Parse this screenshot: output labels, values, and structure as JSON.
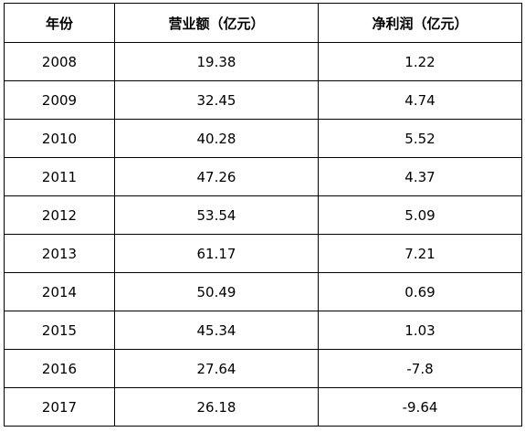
{
  "chart_data": {
    "type": "table",
    "columns": [
      "年份",
      "营业额（亿元）",
      "净利润（亿元）"
    ],
    "rows": [
      [
        "2008",
        "19.38",
        "1.22"
      ],
      [
        "2009",
        "32.45",
        "4.74"
      ],
      [
        "2010",
        "40.28",
        "5.52"
      ],
      [
        "2011",
        "47.26",
        "4.37"
      ],
      [
        "2012",
        "53.54",
        "5.09"
      ],
      [
        "2013",
        "61.17",
        "7.21"
      ],
      [
        "2014",
        "50.49",
        "0.69"
      ],
      [
        "2015",
        "45.34",
        "1.03"
      ],
      [
        "2016",
        "27.64",
        "-7.8"
      ],
      [
        "2017",
        "26.18",
        "-9.64"
      ]
    ]
  }
}
